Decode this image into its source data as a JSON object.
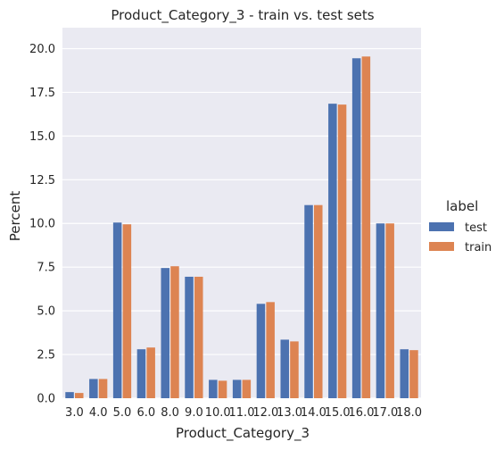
{
  "chart_data": {
    "type": "bar",
    "title": "Product_Category_3 - train vs. test sets",
    "xlabel": "Product_Category_3",
    "ylabel": "Percent",
    "ylim": [
      0,
      21.2
    ],
    "yticks": [
      0.0,
      2.5,
      5.0,
      7.5,
      10.0,
      12.5,
      15.0,
      17.5,
      20.0
    ],
    "ytick_labels": [
      "0.0",
      "2.5",
      "5.0",
      "7.5",
      "10.0",
      "12.5",
      "15.0",
      "17.5",
      "20.0"
    ],
    "grid": true,
    "legend": {
      "title": "label",
      "placement": "right"
    },
    "categories": [
      "3.0",
      "4.0",
      "5.0",
      "6.0",
      "8.0",
      "9.0",
      "10.0",
      "11.0",
      "12.0",
      "13.0",
      "14.0",
      "15.0",
      "16.0",
      "17.0",
      "18.0"
    ],
    "series": [
      {
        "name": "test",
        "color": "#4C72B0",
        "values": [
          0.35,
          1.1,
          10.05,
          2.8,
          7.45,
          6.95,
          1.05,
          1.05,
          5.4,
          3.35,
          11.05,
          16.85,
          19.45,
          10.0,
          2.8
        ]
      },
      {
        "name": "train",
        "color": "#DD8452",
        "values": [
          0.3,
          1.1,
          9.95,
          2.9,
          7.55,
          6.95,
          1.0,
          1.05,
          5.5,
          3.25,
          11.05,
          16.8,
          19.55,
          10.0,
          2.75
        ]
      }
    ],
    "background": "#EAEAF2",
    "grid_color": "#FFFFFF"
  }
}
